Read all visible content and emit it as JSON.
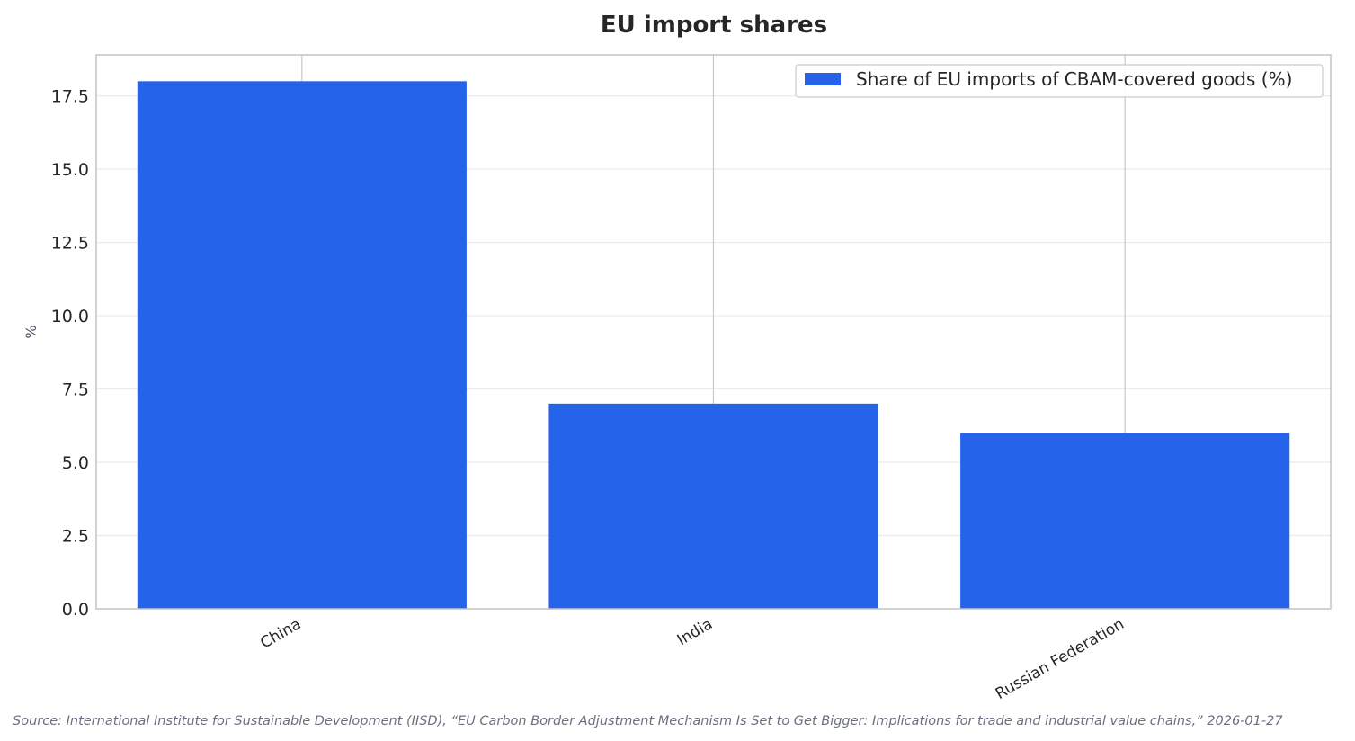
{
  "chart_data": {
    "type": "bar",
    "title": "EU import shares",
    "xlabel": "",
    "ylabel": "%",
    "categories": [
      "China",
      "India",
      "Russian Federation"
    ],
    "series": [
      {
        "name": "Share of EU imports of CBAM-covered goods (%)",
        "values": [
          18,
          7,
          6
        ],
        "color": "#2563eb"
      }
    ],
    "ylim": [
      0,
      18.9
    ],
    "yticks": [
      0.0,
      2.5,
      5.0,
      7.5,
      10.0,
      12.5,
      15.0,
      17.5
    ],
    "ytick_labels": [
      "0.0",
      "2.5",
      "5.0",
      "7.5",
      "10.0",
      "12.5",
      "15.0",
      "17.5"
    ],
    "grid": true,
    "legend_position": "top-right"
  },
  "source": "Source: International Institute for Sustainable Development (IISD), “EU Carbon Border Adjustment Mechanism Is Set to Get Bigger: Implications for trade and industrial value chains,” 2026-01-27",
  "colors": {
    "bar": "#2563eb",
    "grid": "#ebebeb",
    "frame": "#c4c4c4",
    "vertical_grid": "#c8c8c8"
  }
}
